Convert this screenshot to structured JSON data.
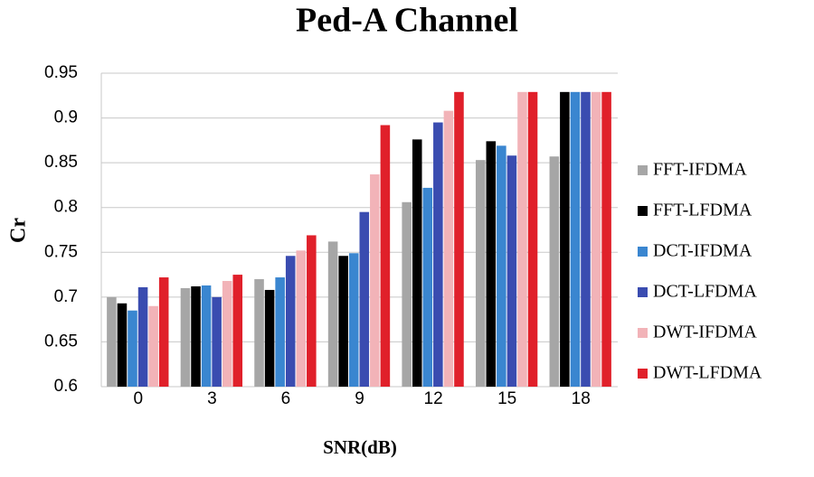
{
  "chart_data": {
    "type": "bar",
    "title": "Ped-A Channel",
    "x_label": "SNR(dB)",
    "y_label": "Cr",
    "categories": [
      "0",
      "3",
      "6",
      "9",
      "12",
      "15",
      "18"
    ],
    "series": [
      {
        "name": "FFT-IFDMA",
        "color": "#a6a6a6",
        "values": [
          0.7,
          0.71,
          0.72,
          0.762,
          0.806,
          0.853,
          0.857
        ]
      },
      {
        "name": "FFT-LFDMA",
        "color": "#000000",
        "values": [
          0.693,
          0.712,
          0.708,
          0.746,
          0.876,
          0.874,
          0.929
        ]
      },
      {
        "name": "DCT-IFDMA",
        "color": "#3a86d0",
        "values": [
          0.685,
          0.713,
          0.722,
          0.749,
          0.822,
          0.869,
          0.929
        ]
      },
      {
        "name": "DCT-LFDMA",
        "color": "#3a4cb0",
        "values": [
          0.711,
          0.7,
          0.746,
          0.795,
          0.895,
          0.858,
          0.929
        ]
      },
      {
        "name": "DWT-IFDMA",
        "color": "#f2b3b8",
        "values": [
          0.69,
          0.718,
          0.752,
          0.837,
          0.908,
          0.929,
          0.929
        ]
      },
      {
        "name": "DWT-LFDMA",
        "color": "#e0202a",
        "values": [
          0.722,
          0.725,
          0.769,
          0.892,
          0.929,
          0.929,
          0.929
        ]
      }
    ],
    "ylim": [
      0.6,
      0.95
    ],
    "yticks": [
      0.6,
      0.65,
      0.7,
      0.75,
      0.8,
      0.85,
      0.9,
      0.95
    ],
    "grid": true,
    "legend": "right"
  }
}
